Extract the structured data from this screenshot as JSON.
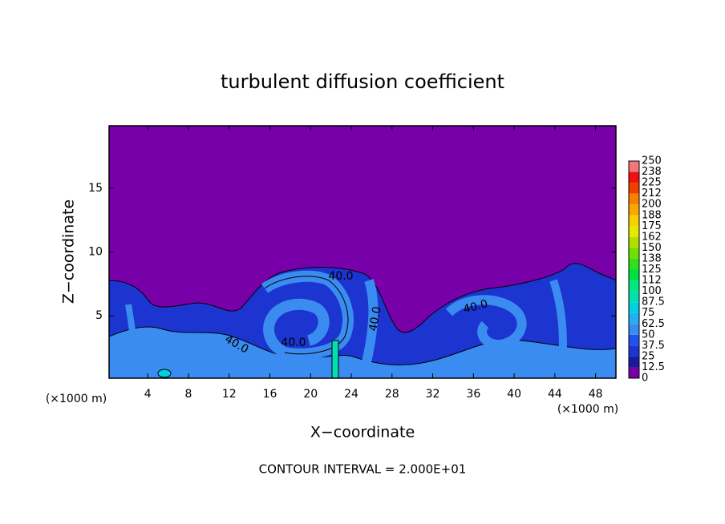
{
  "chart_data": {
    "type": "heatmap",
    "title": "turbulent diffusion coefficient",
    "x_label": "X−coordinate",
    "y_label": "Z−coordinate",
    "x_unit": "(×1000 m)",
    "x_unit_right": "(×1000 m)",
    "footnote": "CONTOUR INTERVAL = 2.000E+01",
    "xlim": [
      0.2,
      50
    ],
    "xticks": [
      4,
      8,
      12,
      16,
      20,
      24,
      28,
      32,
      36,
      40,
      44,
      48
    ],
    "ylim": [
      0.125,
      19.875
    ],
    "yticks": [
      5,
      10,
      15
    ],
    "contour_labels": [
      "40.0",
      "40.0",
      "40.0",
      "40.0",
      "40.0"
    ],
    "colorbar": {
      "levels": [
        0,
        12.5,
        25,
        37.5,
        50,
        62.5,
        75,
        87.5,
        100,
        {
          "value": 112.5,
          "label": "112"
        },
        125,
        {
          "value": 137.5,
          "label": "138"
        },
        150,
        {
          "value": 162.5,
          "label": "162"
        },
        175,
        {
          "value": 187.5,
          "label": "188"
        },
        200,
        {
          "value": 212.5,
          "label": "212"
        },
        225,
        {
          "value": 237.5,
          "label": "238"
        },
        250
      ],
      "colors": [
        "#7800a8",
        "#1a1aa0",
        "#1c34d0",
        "#2052f0",
        "#3a8cf0",
        "#22b0f0",
        "#00d0e0",
        "#00e0b0",
        "#00e880",
        "#00e040",
        "#30e020",
        "#70e000",
        "#b0e000",
        "#e8e800",
        "#f8d000",
        "#f8a800",
        "#f88000",
        "#f04000",
        "#f01010",
        "#f07878"
      ]
    }
  }
}
